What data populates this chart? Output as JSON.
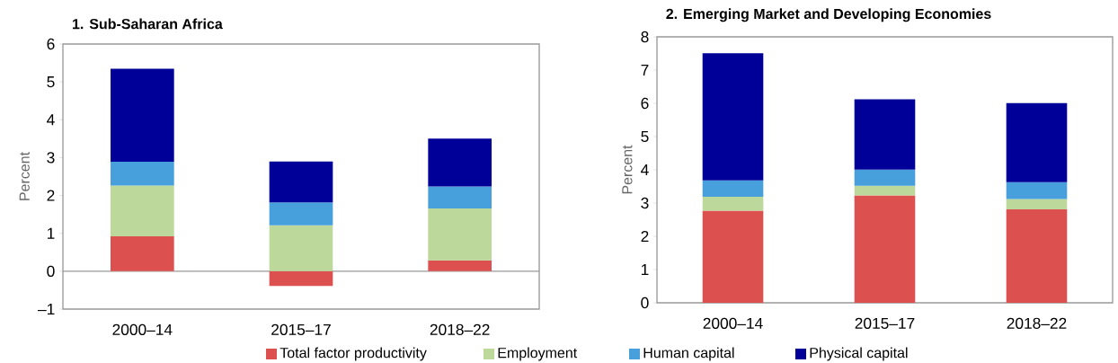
{
  "chart_data": [
    {
      "type": "bar",
      "title": "1. Sub-Saharan Africa",
      "ylabel": "Percent",
      "stacked": true,
      "legend": "bottom",
      "categories": [
        "2000–14",
        "2015–17",
        "2018–22"
      ],
      "ylim": [
        -1,
        6
      ],
      "yticks": [
        {
          "value": -1,
          "label": "–1"
        },
        0,
        1,
        2,
        3,
        4,
        5,
        6
      ],
      "series": [
        {
          "name": "Total factor productivity",
          "color": "#dd5050",
          "values": [
            0.92,
            -0.39,
            0.29
          ]
        },
        {
          "name": "Employment",
          "color": "#bdd89b",
          "values": [
            1.34,
            1.21,
            1.37
          ]
        },
        {
          "name": "Human capital",
          "color": "#479fdc",
          "values": [
            0.63,
            0.61,
            0.58
          ]
        },
        {
          "name": "Physical capital",
          "color": "#000099",
          "values": [
            2.46,
            1.08,
            1.26
          ]
        }
      ]
    },
    {
      "type": "bar",
      "title": "2. Emerging Market and Developing Economies",
      "ylabel": "Percent",
      "stacked": true,
      "categories": [
        "2000–14",
        "2015–17",
        "2018–22"
      ],
      "ylim": [
        0,
        8
      ],
      "yticks": [
        0,
        1,
        2,
        3,
        4,
        5,
        6,
        7,
        8
      ],
      "series": [
        {
          "color": "#dd5050",
          "values": [
            2.77,
            3.23,
            2.81
          ]
        },
        {
          "color": "#bdd89b",
          "values": [
            0.42,
            0.29,
            0.31
          ]
        },
        {
          "color": "#479fdc",
          "values": [
            0.49,
            0.49,
            0.51
          ]
        },
        {
          "color": "#000099",
          "values": [
            3.83,
            2.11,
            2.38
          ]
        }
      ]
    }
  ]
}
